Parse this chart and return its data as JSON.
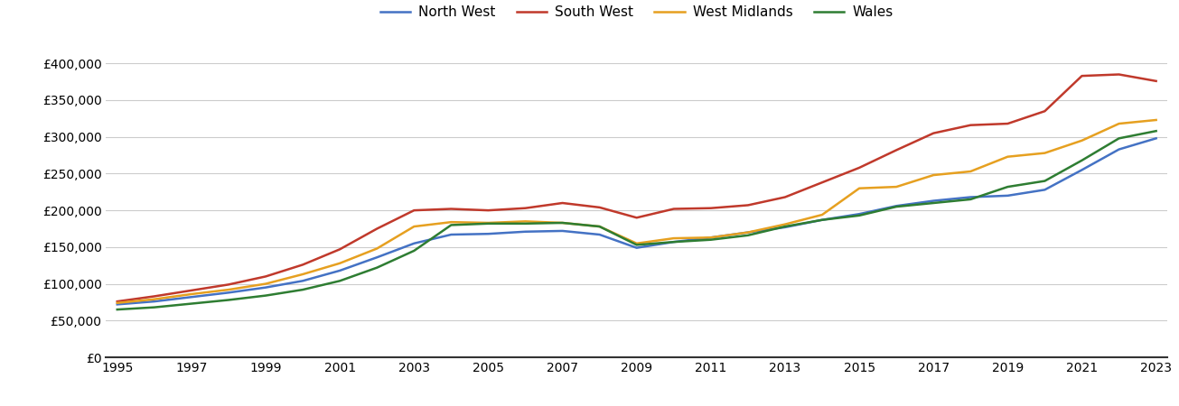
{
  "years": [
    1995,
    1996,
    1997,
    1998,
    1999,
    2000,
    2001,
    2002,
    2003,
    2004,
    2005,
    2006,
    2007,
    2008,
    2009,
    2010,
    2011,
    2012,
    2013,
    2014,
    2015,
    2016,
    2017,
    2018,
    2019,
    2020,
    2021,
    2022,
    2023
  ],
  "series": {
    "North West": [
      72000,
      76000,
      82000,
      88000,
      95000,
      104000,
      118000,
      136000,
      155000,
      167000,
      168000,
      171000,
      172000,
      167000,
      149000,
      157000,
      163000,
      170000,
      177000,
      187000,
      195000,
      206000,
      213000,
      218000,
      220000,
      228000,
      255000,
      283000,
      298000
    ],
    "South West": [
      76000,
      83000,
      91000,
      99000,
      110000,
      126000,
      147000,
      175000,
      200000,
      202000,
      200000,
      203000,
      210000,
      204000,
      190000,
      202000,
      203000,
      207000,
      218000,
      238000,
      258000,
      282000,
      305000,
      316000,
      318000,
      335000,
      383000,
      385000,
      376000
    ],
    "West Midlands": [
      74000,
      79000,
      86000,
      92000,
      100000,
      113000,
      128000,
      148000,
      178000,
      184000,
      183000,
      185000,
      183000,
      178000,
      155000,
      162000,
      163000,
      170000,
      181000,
      194000,
      230000,
      232000,
      248000,
      253000,
      273000,
      278000,
      295000,
      318000,
      323000
    ],
    "Wales": [
      65000,
      68000,
      73000,
      78000,
      84000,
      92000,
      104000,
      122000,
      145000,
      180000,
      182000,
      182000,
      183000,
      178000,
      153000,
      157000,
      160000,
      166000,
      178000,
      187000,
      193000,
      205000,
      210000,
      215000,
      232000,
      240000,
      268000,
      298000,
      308000
    ]
  },
  "colors": {
    "North West": "#4472C4",
    "South West": "#C0392B",
    "West Midlands": "#E6A020",
    "Wales": "#2E7D32"
  },
  "ylim": [
    0,
    420000
  ],
  "yticks": [
    0,
    50000,
    100000,
    150000,
    200000,
    250000,
    300000,
    350000,
    400000
  ],
  "xticks": [
    1995,
    1997,
    1999,
    2001,
    2003,
    2005,
    2007,
    2009,
    2011,
    2013,
    2015,
    2017,
    2019,
    2021,
    2023
  ],
  "legend_order": [
    "North West",
    "South West",
    "West Midlands",
    "Wales"
  ],
  "line_width": 1.8,
  "background_color": "#ffffff",
  "grid_color": "#cccccc"
}
